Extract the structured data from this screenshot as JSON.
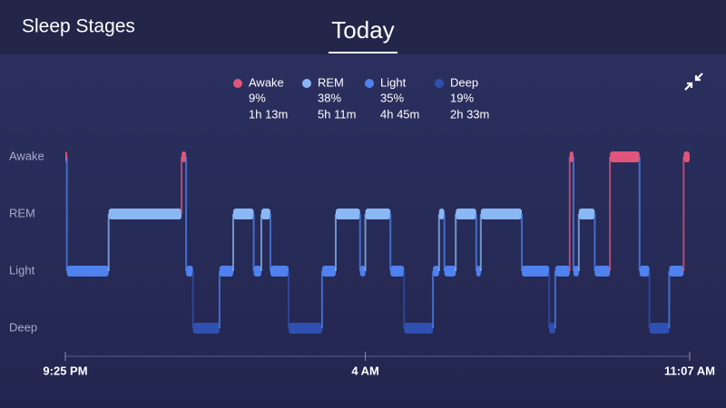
{
  "header": {
    "title": "Sleep Stages",
    "tab": "Today"
  },
  "summary": {
    "names": [
      "Awake",
      "REM",
      "Light",
      "Deep"
    ],
    "colors": [
      "#e2557a",
      "#8ab8f5",
      "#4f82ee",
      "#2f50b0"
    ],
    "values": [
      9,
      38,
      35,
      19
    ],
    "value_labels": [
      "9%",
      "38%",
      "35%",
      "19%"
    ],
    "durations": [
      "1h 13m",
      "5h 11m",
      "4h 45m",
      "2h 33m"
    ]
  },
  "chart_data": {
    "type": "step",
    "x": [
      "21:25",
      "21:27",
      "22:22",
      "23:58",
      "00:04",
      "00:13",
      "00:48",
      "01:06",
      "01:33",
      "01:43",
      "01:55",
      "02:19",
      "03:03",
      "03:21",
      "03:53",
      "04:00",
      "04:33",
      "04:51",
      "05:29",
      "05:37",
      "05:44",
      "05:59",
      "06:26",
      "06:32",
      "07:26",
      "08:02",
      "08:10",
      "08:29",
      "08:34",
      "08:41",
      "09:02",
      "09:22",
      "10:01",
      "10:14",
      "10:40",
      "10:59"
    ],
    "values": [
      3,
      1,
      2,
      3,
      1,
      0,
      1,
      2,
      1,
      2,
      1,
      0,
      1,
      2,
      1,
      2,
      1,
      0,
      1,
      2,
      1,
      2,
      1,
      2,
      1,
      0,
      1,
      3,
      1,
      2,
      1,
      3,
      1,
      0,
      1,
      3
    ],
    "xlim": [
      "21:25",
      "11:07"
    ],
    "xticks": [
      {
        "value": "21:25",
        "label": "9:25 PM"
      },
      {
        "value": "04:00",
        "label": "4 AM"
      },
      {
        "value": "11:07",
        "label": "11:07 AM"
      }
    ],
    "ylim": [
      0,
      3
    ],
    "yticks": [
      {
        "value": 0,
        "label": "Deep"
      },
      {
        "value": 1,
        "label": "Light"
      },
      {
        "value": 2,
        "label": "REM"
      },
      {
        "value": 3,
        "label": "Awake"
      }
    ]
  }
}
